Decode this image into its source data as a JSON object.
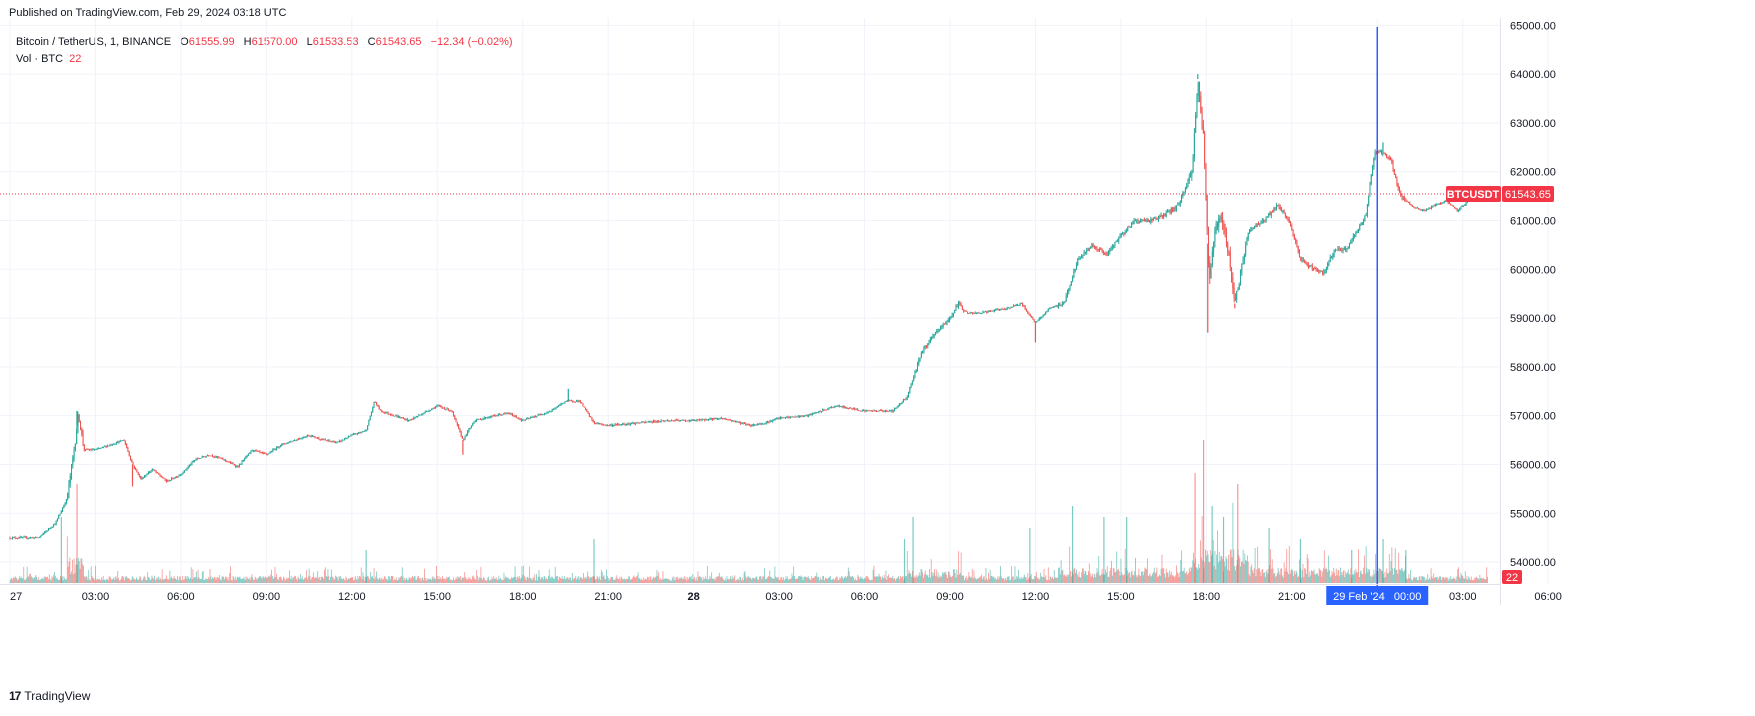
{
  "published": "Published on TradingView.com, Feb 29, 2024 03:18 UTC",
  "legend": {
    "symbol": "Bitcoin / TetherUS, 1, BINANCE",
    "o_label": "O",
    "o": "61555.99",
    "h_label": "H",
    "h": "61570.00",
    "l_label": "L",
    "l": "61533.53",
    "c_label": "C",
    "c": "61543.65",
    "change": "−12.34 (−0.02%)",
    "vol_label": "Vol · BTC",
    "vol": "22"
  },
  "price_tag": {
    "symbol": "BTCUSDT",
    "price": "61543.65"
  },
  "vol_tag": "22",
  "cursor_label": "29 Feb '24   00:00",
  "footer": {
    "logo": "17",
    "brand": "TradingView"
  },
  "colors": {
    "up": "#26a69a",
    "down": "#ef5350",
    "cursor": "#2962ff",
    "last": "#f23645",
    "grid": "#f0f3fa"
  },
  "chart_data": {
    "type": "candlestick",
    "title": "Bitcoin / TetherUS, 1, BINANCE",
    "interval": "1 minute",
    "y_ticks": [
      54000,
      55000,
      56000,
      57000,
      58000,
      59000,
      60000,
      61000,
      62000,
      63000,
      64000,
      65000
    ],
    "y_tick_labels": [
      "54000.00",
      "55000.00",
      "56000.00",
      "57000.00",
      "58000.00",
      "59000.00",
      "60000.00",
      "61000.00",
      "62000.00",
      "63000.00",
      "64000.00",
      "65000.00"
    ],
    "ylim": [
      53550,
      65150
    ],
    "x_ticks": [
      0,
      3,
      6,
      9,
      12,
      15,
      18,
      21,
      24,
      27,
      30,
      33,
      36,
      39,
      42,
      45,
      48,
      51,
      54
    ],
    "x_tick_labels": [
      "27",
      "03:00",
      "06:00",
      "09:00",
      "12:00",
      "15:00",
      "18:00",
      "21:00",
      "28",
      "03:00",
      "06:00",
      "09:00",
      "12:00",
      "15:00",
      "18:00",
      "21:00",
      "29",
      "03:00",
      "06:00"
    ],
    "xlim": [
      0.0,
      54.17
    ],
    "cursor_x": 48.0,
    "last_price": 61543.65,
    "price_path": [
      [
        0.0,
        54500
      ],
      [
        1.0,
        54500
      ],
      [
        1.6,
        54800
      ],
      [
        2.0,
        55300
      ],
      [
        2.3,
        56500
      ],
      [
        2.4,
        57050
      ],
      [
        2.6,
        56300
      ],
      [
        3.0,
        56300
      ],
      [
        3.5,
        56400
      ],
      [
        4.0,
        56500
      ],
      [
        4.3,
        56000
      ],
      [
        4.6,
        55700
      ],
      [
        5.0,
        55900
      ],
      [
        5.5,
        55650
      ],
      [
        6.0,
        55800
      ],
      [
        6.5,
        56100
      ],
      [
        7.0,
        56200
      ],
      [
        7.5,
        56100
      ],
      [
        8.0,
        55950
      ],
      [
        8.5,
        56300
      ],
      [
        9.0,
        56200
      ],
      [
        9.5,
        56400
      ],
      [
        10.0,
        56500
      ],
      [
        10.5,
        56600
      ],
      [
        11.0,
        56500
      ],
      [
        11.5,
        56450
      ],
      [
        12.0,
        56600
      ],
      [
        12.5,
        56700
      ],
      [
        12.8,
        57300
      ],
      [
        13.0,
        57100
      ],
      [
        13.5,
        57000
      ],
      [
        14.0,
        56900
      ],
      [
        14.5,
        57050
      ],
      [
        15.0,
        57200
      ],
      [
        15.5,
        57100
      ],
      [
        15.9,
        56500
      ],
      [
        16.3,
        56900
      ],
      [
        17.0,
        57000
      ],
      [
        17.5,
        57050
      ],
      [
        18.0,
        56900
      ],
      [
        18.5,
        57000
      ],
      [
        19.0,
        57100
      ],
      [
        19.5,
        57300
      ],
      [
        20.0,
        57300
      ],
      [
        20.5,
        56850
      ],
      [
        21.0,
        56800
      ],
      [
        22.0,
        56850
      ],
      [
        23.0,
        56900
      ],
      [
        24.0,
        56900
      ],
      [
        25.0,
        56950
      ],
      [
        26.0,
        56800
      ],
      [
        26.5,
        56850
      ],
      [
        27.0,
        56950
      ],
      [
        28.0,
        57000
      ],
      [
        29.0,
        57200
      ],
      [
        30.0,
        57100
      ],
      [
        31.0,
        57100
      ],
      [
        31.5,
        57400
      ],
      [
        32.0,
        58300
      ],
      [
        32.5,
        58700
      ],
      [
        33.0,
        59000
      ],
      [
        33.3,
        59300
      ],
      [
        33.6,
        59100
      ],
      [
        34.0,
        59100
      ],
      [
        34.5,
        59150
      ],
      [
        35.0,
        59200
      ],
      [
        35.5,
        59300
      ],
      [
        36.0,
        58900
      ],
      [
        36.5,
        59200
      ],
      [
        37.0,
        59300
      ],
      [
        37.5,
        60200
      ],
      [
        38.0,
        60500
      ],
      [
        38.5,
        60300
      ],
      [
        39.0,
        60700
      ],
      [
        39.5,
        61000
      ],
      [
        40.0,
        61000
      ],
      [
        40.5,
        61100
      ],
      [
        41.0,
        61300
      ],
      [
        41.5,
        62000
      ],
      [
        41.7,
        63900
      ],
      [
        41.9,
        62700
      ],
      [
        42.1,
        59800
      ],
      [
        42.3,
        60800
      ],
      [
        42.5,
        61100
      ],
      [
        42.8,
        60300
      ],
      [
        43.0,
        59300
      ],
      [
        43.5,
        60800
      ],
      [
        44.0,
        61000
      ],
      [
        44.5,
        61300
      ],
      [
        44.9,
        61000
      ],
      [
        45.3,
        60200
      ],
      [
        45.8,
        60000
      ],
      [
        46.1,
        59900
      ],
      [
        46.5,
        60400
      ],
      [
        46.9,
        60400
      ],
      [
        47.3,
        60800
      ],
      [
        47.6,
        61100
      ],
      [
        47.9,
        62400
      ],
      [
        48.2,
        62400
      ],
      [
        48.5,
        62200
      ],
      [
        48.8,
        61500
      ],
      [
        49.2,
        61300
      ],
      [
        49.6,
        61200
      ],
      [
        50.0,
        61300
      ],
      [
        50.4,
        61400
      ],
      [
        50.8,
        61200
      ],
      [
        51.1,
        61350
      ],
      [
        51.5,
        61700
      ],
      [
        51.9,
        61543.65
      ]
    ],
    "wick_extremes": [
      [
        2.35,
        57100,
        "high"
      ],
      [
        4.3,
        55550,
        "low"
      ],
      [
        15.9,
        56200,
        "low"
      ],
      [
        19.6,
        57550,
        "high"
      ],
      [
        36.0,
        58500,
        "low"
      ],
      [
        41.7,
        64000,
        "high"
      ],
      [
        42.05,
        58700,
        "low"
      ],
      [
        43.0,
        59200,
        "low"
      ],
      [
        48.2,
        62600,
        "high"
      ]
    ],
    "volume_spikes": [
      [
        1.8,
        6
      ],
      [
        2.35,
        9
      ],
      [
        12.5,
        3
      ],
      [
        20.5,
        4
      ],
      [
        31.4,
        4
      ],
      [
        31.7,
        6
      ],
      [
        35.8,
        5
      ],
      [
        37.3,
        7
      ],
      [
        38.4,
        6
      ],
      [
        39.2,
        6
      ],
      [
        41.6,
        10
      ],
      [
        41.9,
        13
      ],
      [
        42.2,
        7
      ],
      [
        42.6,
        6
      ],
      [
        43.1,
        9
      ],
      [
        44.2,
        5
      ],
      [
        45.3,
        4
      ],
      [
        47.1,
        3
      ],
      [
        48.2,
        4
      ],
      [
        49.0,
        3
      ]
    ]
  }
}
